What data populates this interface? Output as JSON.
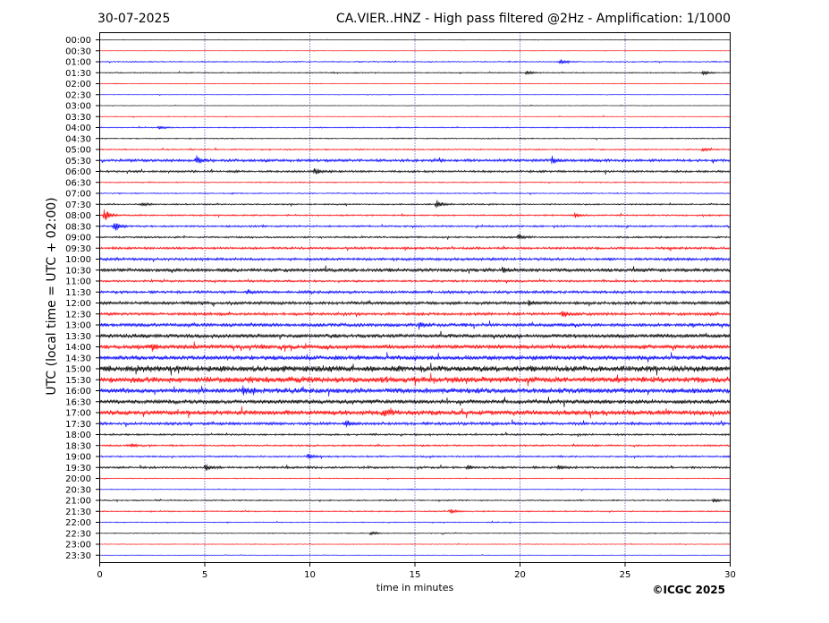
{
  "header": {
    "date": "30-07-2025",
    "title": "CA.VIER..HNZ - High pass filtered @2Hz - Amplification: 1/1000"
  },
  "footer": {
    "copyright": "©ICGC 2025"
  },
  "colors": {
    "red": "#ff0000",
    "blue": "#0000ff",
    "grid": "#000080",
    "frame": "#000000"
  },
  "chart_data": {
    "type": "line",
    "title": "CA.VIER..HNZ - High pass filtered @2Hz - Amplification: 1/1000",
    "xlabel": "time in minutes",
    "ylabel": "UTC (local time = UTC + 02:00)",
    "xlim": [
      0,
      30
    ],
    "x_ticks": [
      "0",
      "5",
      "10",
      "15",
      "20",
      "25",
      "30"
    ],
    "x_tick_values": [
      0,
      5,
      10,
      15,
      20,
      25,
      30
    ],
    "grid": "vertical dotted at 5-minute intervals",
    "rows": [
      "00:00",
      "00:30",
      "01:00",
      "01:30",
      "02:00",
      "02:30",
      "03:00",
      "03:30",
      "04:00",
      "04:30",
      "05:00",
      "05:30",
      "06:00",
      "06:30",
      "07:00",
      "07:30",
      "08:00",
      "08:30",
      "09:00",
      "09:30",
      "10:00",
      "10:30",
      "11:00",
      "11:30",
      "12:00",
      "12:30",
      "13:00",
      "13:30",
      "14:00",
      "14:30",
      "15:00",
      "15:30",
      "16:00",
      "16:30",
      "17:00",
      "17:30",
      "18:00",
      "18:30",
      "19:00",
      "19:30",
      "20:00",
      "20:30",
      "21:00",
      "21:30",
      "22:00",
      "22:30",
      "23:00",
      "23:30"
    ],
    "row_colors_cycle": [
      "black",
      "red",
      "blue"
    ],
    "row_noise_level": [
      0.3,
      0.3,
      0.6,
      0.6,
      0.4,
      0.3,
      0.3,
      0.4,
      0.6,
      0.6,
      0.7,
      1.5,
      1.2,
      0.6,
      0.6,
      0.8,
      0.9,
      1.0,
      1.0,
      1.3,
      1.5,
      2.0,
      1.2,
      1.5,
      1.8,
      1.6,
      2.0,
      2.3,
      2.5,
      2.6,
      3.5,
      3.4,
      3.0,
      2.4,
      2.8,
      1.6,
      1.0,
      1.0,
      0.9,
      1.2,
      0.5,
      0.5,
      0.7,
      0.7,
      0.5,
      0.5,
      0.4,
      0.3
    ],
    "events": [
      {
        "row": "01:00",
        "minute": 21.9,
        "amplitude": 4
      },
      {
        "row": "01:30",
        "minute": 28.7,
        "amplitude": 4
      },
      {
        "row": "01:30",
        "minute": 20.3,
        "amplitude": 3
      },
      {
        "row": "04:00",
        "minute": 2.8,
        "amplitude": 3
      },
      {
        "row": "05:00",
        "minute": 28.7,
        "amplitude": 3
      },
      {
        "row": "05:30",
        "minute": 4.6,
        "amplitude": 6
      },
      {
        "row": "05:30",
        "minute": 21.5,
        "amplitude": 6
      },
      {
        "row": "06:00",
        "minute": 10.2,
        "amplitude": 5
      },
      {
        "row": "07:30",
        "minute": 2.0,
        "amplitude": 3
      },
      {
        "row": "07:30",
        "minute": 16.0,
        "amplitude": 6
      },
      {
        "row": "08:00",
        "minute": 0.2,
        "amplitude": 9
      },
      {
        "row": "08:00",
        "minute": 22.6,
        "amplitude": 4
      },
      {
        "row": "08:30",
        "minute": 0.7,
        "amplitude": 8
      },
      {
        "row": "09:00",
        "minute": 19.9,
        "amplitude": 5
      },
      {
        "row": "10:30",
        "minute": 19.2,
        "amplitude": 4
      },
      {
        "row": "11:30",
        "minute": 7.0,
        "amplitude": 4
      },
      {
        "row": "12:00",
        "minute": 20.4,
        "amplitude": 4
      },
      {
        "row": "12:30",
        "minute": 22.0,
        "amplitude": 5
      },
      {
        "row": "13:00",
        "minute": 15.2,
        "amplitude": 4
      },
      {
        "row": "14:00",
        "minute": 2.5,
        "amplitude": 4
      },
      {
        "row": "16:00",
        "minute": 6.8,
        "amplitude": 5
      },
      {
        "row": "17:00",
        "minute": 13.5,
        "amplitude": 5
      },
      {
        "row": "17:30",
        "minute": 11.7,
        "amplitude": 5
      },
      {
        "row": "18:30",
        "minute": 1.5,
        "amplitude": 3
      },
      {
        "row": "19:00",
        "minute": 9.9,
        "amplitude": 4
      },
      {
        "row": "19:30",
        "minute": 5.0,
        "amplitude": 5
      },
      {
        "row": "19:30",
        "minute": 17.5,
        "amplitude": 3
      },
      {
        "row": "19:30",
        "minute": 21.8,
        "amplitude": 3
      },
      {
        "row": "21:00",
        "minute": 29.2,
        "amplitude": 3
      },
      {
        "row": "21:30",
        "minute": 16.7,
        "amplitude": 3
      },
      {
        "row": "22:30",
        "minute": 12.9,
        "amplitude": 3
      }
    ]
  }
}
